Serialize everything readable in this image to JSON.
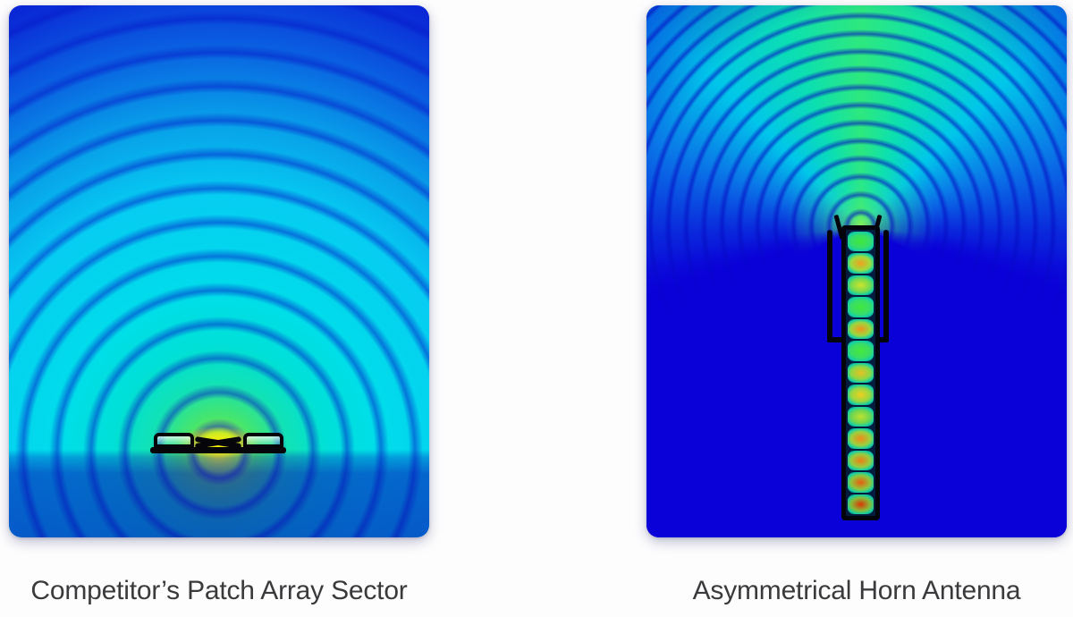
{
  "figure": {
    "left_panel": {
      "caption": "Competitor’s Patch Array Sector",
      "colormap": {
        "background_blue": "#0a14d0",
        "ring_cyan": "#00ddea",
        "core_green": "#30e690",
        "hot_yellow": "#ffee00",
        "structure_black": "#05050a"
      }
    },
    "right_panel": {
      "caption": "Asymmetrical Horn Antenna",
      "colormap": {
        "background_blue": "#0a00d8",
        "beam_green": "#2ee87e",
        "ring_cyan": "#00c6ea",
        "hot_red": "#dd3606",
        "structure_black": "#04040c"
      },
      "waveguide_cells": [
        {
          "center": "#3fe83d",
          "mid": "#35dd6c"
        },
        {
          "center": "#f0a01e",
          "mid": "#9edc3e"
        },
        {
          "center": "#cde32a",
          "mid": "#74db50"
        },
        {
          "center": "#42e83f",
          "mid": "#38dd68"
        },
        {
          "center": "#f0941c",
          "mid": "#9ad83f"
        },
        {
          "center": "#46e83d",
          "mid": "#3add64"
        },
        {
          "center": "#e8c022",
          "mid": "#8cd845"
        },
        {
          "center": "#f0cf1e",
          "mid": "#95d843"
        },
        {
          "center": "#bfe02e",
          "mid": "#6cd652"
        },
        {
          "center": "#f08a18",
          "mid": "#9ad23f"
        },
        {
          "center": "#ef7d14",
          "mid": "#95ce41"
        },
        {
          "center": "#ea5a0e",
          "mid": "#8ec73d"
        },
        {
          "center": "#dd3606",
          "mid": "#84be39"
        }
      ]
    }
  }
}
